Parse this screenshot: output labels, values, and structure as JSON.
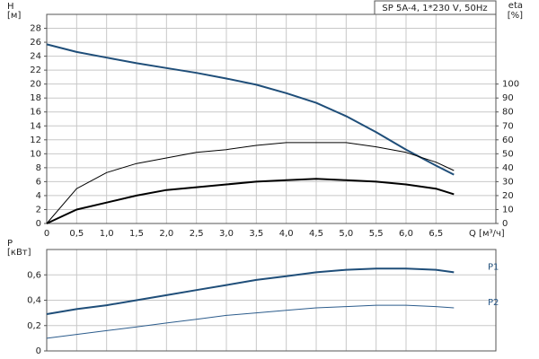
{
  "chart_data": [
    {
      "type": "line",
      "title": "SP 5A-4, 1*230 V, 50Hz",
      "ylabel": "H",
      "yunit": "[м]",
      "y2label": "eta",
      "y2unit": "[%]",
      "xlabel": "Q [м³/ч]",
      "x": [
        0,
        0.5,
        1,
        1.5,
        2,
        2.5,
        3,
        3.5,
        4,
        4.5,
        5,
        5.5,
        6,
        6.5,
        6.8
      ],
      "xlim": [
        0,
        7.5
      ],
      "xticks": [
        0,
        {
          "value": 0.5,
          "label": "0,5"
        },
        {
          "value": 1,
          "label": "1,0"
        },
        {
          "value": 1.5,
          "label": "1,5"
        },
        {
          "value": 2,
          "label": "2,0"
        },
        {
          "value": 2.5,
          "label": "2,5"
        },
        {
          "value": 3,
          "label": "3,0"
        },
        {
          "value": 3.5,
          "label": "3,5"
        },
        {
          "value": 4,
          "label": "4,0"
        },
        {
          "value": 4.5,
          "label": "4,5"
        },
        {
          "value": 5,
          "label": "5,0"
        },
        {
          "value": 5.5,
          "label": "5,5"
        },
        {
          "value": 6,
          "label": "6,0"
        },
        {
          "value": 6.5,
          "label": "6,5"
        }
      ],
      "ylim": [
        0,
        30
      ],
      "yticks": [
        0,
        2,
        4,
        6,
        8,
        10,
        12,
        14,
        16,
        18,
        20,
        22,
        24,
        26,
        28
      ],
      "y2lim": [
        0,
        150
      ],
      "y2ticks": [
        0,
        10,
        20,
        30,
        40,
        50,
        60,
        70,
        80,
        90,
        100
      ],
      "grid": true,
      "series": [
        {
          "color": "#1f4e79",
          "values": [
            25.7,
            24.6,
            23.8,
            23.0,
            22.3,
            21.6,
            20.8,
            19.9,
            18.7,
            17.3,
            15.4,
            13.1,
            10.6,
            8.3,
            7.0
          ]
        },
        {
          "color": "#000000",
          "axis": "y2",
          "values": [
            0,
            25,
            36.5,
            43,
            47,
            51,
            53,
            56,
            58,
            58,
            58,
            55,
            51,
            44,
            38
          ]
        },
        {
          "color": "#000000",
          "axis": "y2",
          "values": [
            0,
            10,
            15,
            20,
            24,
            26,
            28,
            30,
            31,
            32,
            31,
            30,
            28,
            25,
            21
          ]
        }
      ]
    },
    {
      "type": "line",
      "ylabel": "P",
      "yunit": "[кВт]",
      "x": [
        0,
        0.5,
        1,
        1.5,
        2,
        2.5,
        3,
        3.5,
        4,
        4.5,
        5,
        5.5,
        6,
        6.5,
        6.8
      ],
      "xlim": [
        0,
        7.5
      ],
      "xticks": [
        0,
        0.5,
        1,
        1.5,
        2,
        2.5,
        3,
        3.5,
        4,
        4.5,
        5,
        5.5,
        6,
        6.5
      ],
      "ylim": [
        0,
        0.8
      ],
      "yticks": [
        0,
        {
          "value": 0.2,
          "label": "0,2"
        },
        {
          "value": 0.4,
          "label": "0,4"
        },
        {
          "value": 0.6,
          "label": "0,6"
        }
      ],
      "grid": true,
      "series": [
        {
          "name": "P1",
          "color": "#1f4e79",
          "values": [
            0.29,
            0.33,
            0.36,
            0.4,
            0.44,
            0.48,
            0.52,
            0.56,
            0.59,
            0.62,
            0.64,
            0.65,
            0.65,
            0.64,
            0.62
          ]
        },
        {
          "name": "P2",
          "color": "#2c5c8c",
          "values": [
            0.1,
            0.13,
            0.16,
            0.19,
            0.22,
            0.25,
            0.28,
            0.3,
            0.32,
            0.34,
            0.35,
            0.36,
            0.36,
            0.35,
            0.34
          ]
        }
      ]
    }
  ]
}
